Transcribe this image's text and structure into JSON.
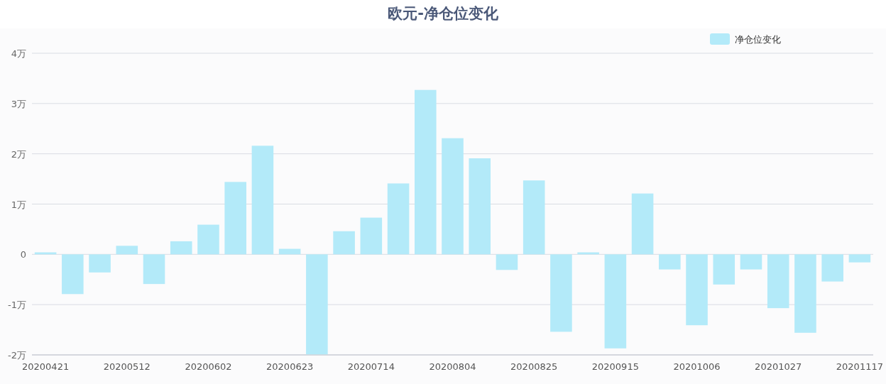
{
  "chart_data": {
    "type": "bar",
    "title": "欧元-净仓位变化",
    "categories": [
      "20200421",
      null,
      null,
      "20200512",
      null,
      null,
      "20200602",
      null,
      null,
      "20200623",
      null,
      null,
      "20200714",
      null,
      null,
      "20200804",
      null,
      null,
      "20200825",
      null,
      null,
      "20200915",
      null,
      null,
      "20201006",
      null,
      null,
      "20201027",
      null,
      null,
      "20201117"
    ],
    "series": [
      {
        "name": "净仓位变化",
        "color": "#b3eaf9",
        "values": [
          0.04,
          -0.79,
          -0.36,
          0.17,
          -0.59,
          0.26,
          0.59,
          1.44,
          2.16,
          0.11,
          -1.99,
          0.46,
          0.73,
          1.41,
          3.27,
          2.31,
          1.91,
          -0.31,
          1.47,
          -1.54,
          0.04,
          -1.87,
          1.21,
          -0.3,
          -1.41,
          -0.6,
          -0.3,
          -1.07,
          -1.56,
          -0.54,
          -0.16
        ]
      }
    ],
    "ylim": [
      -2,
      4
    ],
    "yticks": [
      {
        "value": -2,
        "label": "-2万"
      },
      {
        "value": -1,
        "label": "-1万"
      },
      0,
      {
        "value": 1,
        "label": "1万"
      },
      {
        "value": 2,
        "label": "2万"
      },
      {
        "value": 3,
        "label": "3万"
      },
      {
        "value": 4,
        "label": "4万"
      }
    ],
    "grid": "y",
    "legend": "top right"
  }
}
